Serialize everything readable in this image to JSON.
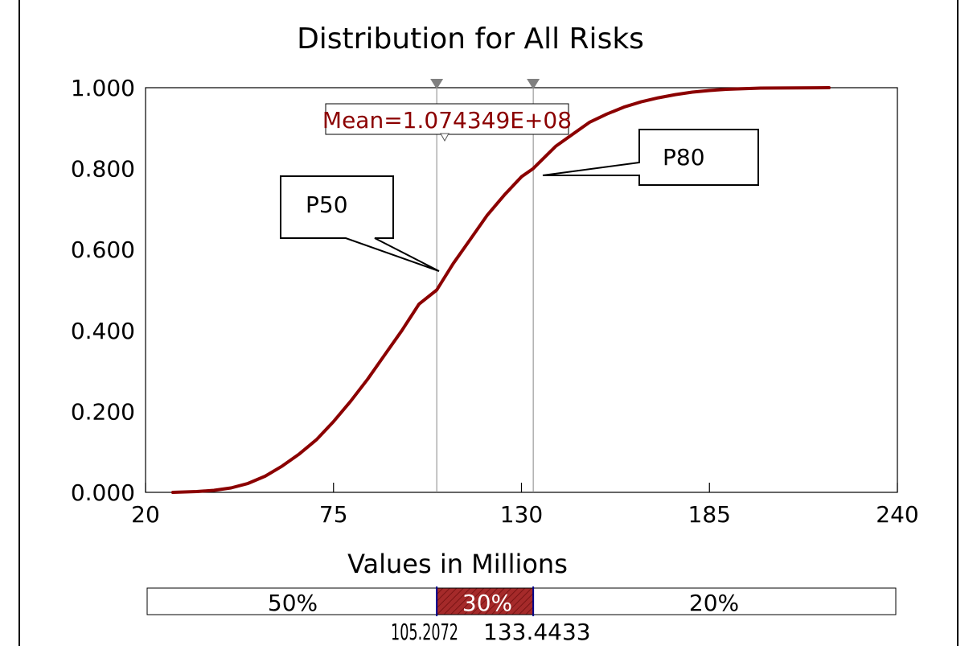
{
  "colors": {
    "curve": "#8b0000",
    "marker": "#808080",
    "band_fill": "#a52a2a",
    "frame": "#000000"
  },
  "chart_data": {
    "type": "line",
    "title": "Distribution for All Risks",
    "xlabel": "Values in Millions",
    "ylabel": "",
    "xlim": [
      20,
      240
    ],
    "ylim": [
      0,
      1
    ],
    "x_ticks": [
      "20",
      "75",
      "130",
      "185",
      "240"
    ],
    "y_ticks": [
      "0.000",
      "0.200",
      "0.400",
      "0.600",
      "0.800",
      "1.000"
    ],
    "series": [
      {
        "points": [
          [
            28,
            0.0
          ],
          [
            35,
            0.002
          ],
          [
            40,
            0.005
          ],
          [
            45,
            0.011
          ],
          [
            50,
            0.022
          ],
          [
            55,
            0.04
          ],
          [
            60,
            0.065
          ],
          [
            65,
            0.095
          ],
          [
            70,
            0.13
          ],
          [
            75,
            0.175
          ],
          [
            80,
            0.225
          ],
          [
            85,
            0.28
          ],
          [
            90,
            0.34
          ],
          [
            95,
            0.4
          ],
          [
            100,
            0.465
          ],
          [
            105.2,
            0.5
          ],
          [
            110,
            0.565
          ],
          [
            115,
            0.625
          ],
          [
            120,
            0.685
          ],
          [
            125,
            0.735
          ],
          [
            130,
            0.78
          ],
          [
            133.4,
            0.8
          ],
          [
            140,
            0.855
          ],
          [
            145,
            0.885
          ],
          [
            150,
            0.915
          ],
          [
            155,
            0.935
          ],
          [
            160,
            0.952
          ],
          [
            165,
            0.965
          ],
          [
            170,
            0.975
          ],
          [
            175,
            0.983
          ],
          [
            180,
            0.989
          ],
          [
            185,
            0.993
          ],
          [
            190,
            0.996
          ],
          [
            200,
            0.999
          ],
          [
            220,
            1.0
          ]
        ]
      }
    ],
    "markers": [
      105.2072,
      133.4433
    ],
    "mean_label": "Mean=1.074349E+08",
    "callouts": [
      {
        "label": "P50",
        "x": 105.2,
        "y": 0.5
      },
      {
        "label": "P80",
        "x": 133.4,
        "y": 0.8
      }
    ],
    "band": {
      "left_pct": "50%",
      "mid_pct": "30%",
      "right_pct": "20%",
      "low_value": "105.2072",
      "high_value": "133.4433"
    }
  }
}
